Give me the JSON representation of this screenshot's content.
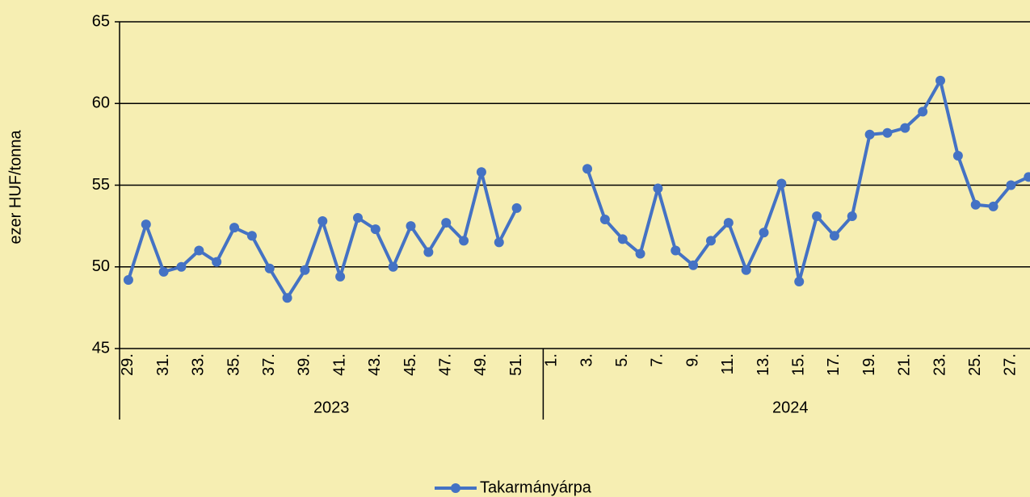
{
  "chart_data": {
    "type": "line",
    "y_label": "ezer HUF/tonna",
    "categories": [
      "29.",
      null,
      "31.",
      null,
      "33.",
      null,
      "35.",
      null,
      "37.",
      null,
      "39.",
      null,
      "41.",
      null,
      "43.",
      null,
      "45.",
      null,
      "47.",
      null,
      "49.",
      null,
      "51.",
      null,
      "1.",
      null,
      "3.",
      null,
      "5.",
      null,
      "7.",
      null,
      "9.",
      null,
      "11.",
      null,
      "13.",
      null,
      "15.",
      null,
      "17.",
      null,
      "19.",
      null,
      "21.",
      null,
      "23.",
      null,
      "25.",
      null,
      "27.",
      null
    ],
    "groups": [
      {
        "label": "2023",
        "count": 24
      },
      {
        "label": "2024",
        "count": 28
      }
    ],
    "series": [
      {
        "name": "Takarmányárpa",
        "color": "#4472c4",
        "values": [
          49.2,
          52.6,
          49.7,
          50.0,
          51.0,
          50.3,
          52.4,
          51.9,
          49.9,
          48.1,
          49.8,
          52.8,
          49.4,
          53.0,
          52.3,
          50.0,
          52.5,
          50.9,
          52.7,
          51.6,
          55.8,
          51.5,
          53.6,
          null,
          null,
          null,
          56.0,
          52.9,
          51.7,
          50.8,
          54.8,
          51.0,
          50.1,
          51.6,
          52.7,
          49.8,
          52.1,
          55.1,
          49.1,
          53.1,
          51.9,
          53.1,
          58.1,
          58.2,
          58.5,
          59.5,
          61.4,
          56.8,
          53.8,
          53.7,
          55.0,
          55.5
        ]
      }
    ],
    "ylim": [
      45,
      65
    ],
    "yticks": [
      45,
      50,
      55,
      60,
      65
    ],
    "grid": true,
    "legend": "bottom"
  }
}
